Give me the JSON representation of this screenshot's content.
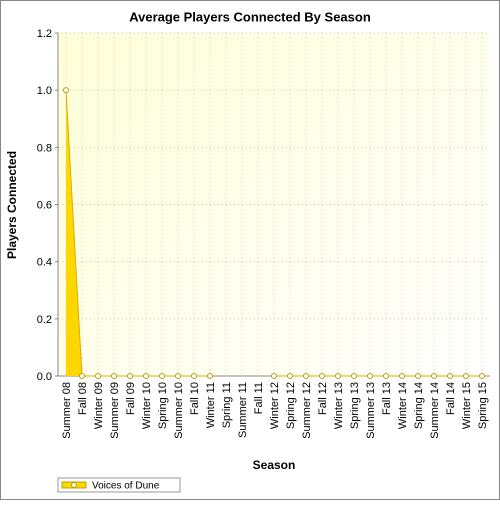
{
  "chart_data": {
    "type": "area",
    "title": "Average Players Connected By Season",
    "x_label": "Season",
    "y_label": "Players Connected",
    "categories": [
      "Summer 08",
      "Fall 08",
      "Winter 09",
      "Summer 09",
      "Fall 09",
      "Winter 10",
      "Spring 10",
      "Summer 10",
      "Fall 10",
      "Winter 11",
      "Spring 11",
      "Summer 11",
      "Fall 11",
      "Winter 12",
      "Spring 12",
      "Summer 12",
      "Fall 12",
      "Winter 13",
      "Spring 13",
      "Summer 13",
      "Fall 13",
      "Winter 14",
      "Spring 14",
      "Summer 14",
      "Fall 14",
      "Winter 15",
      "Spring 15"
    ],
    "series": [
      {
        "name": "Voices of Dune",
        "color": "#ffd700",
        "values": [
          1.0,
          0,
          0,
          0,
          0,
          0,
          0,
          0,
          0,
          0,
          null,
          null,
          null,
          0,
          0,
          0,
          0,
          0,
          0,
          0,
          0,
          0,
          0,
          0,
          0,
          0,
          0
        ]
      }
    ],
    "ylim": [
      0,
      1.2
    ],
    "yticks": [
      {
        "value": 0,
        "label": "0.0"
      },
      0.2,
      0.4,
      0.6,
      0.8,
      {
        "value": 1.0,
        "label": "1.0"
      },
      1.2
    ],
    "grid": true,
    "legend": "bottom-left"
  }
}
